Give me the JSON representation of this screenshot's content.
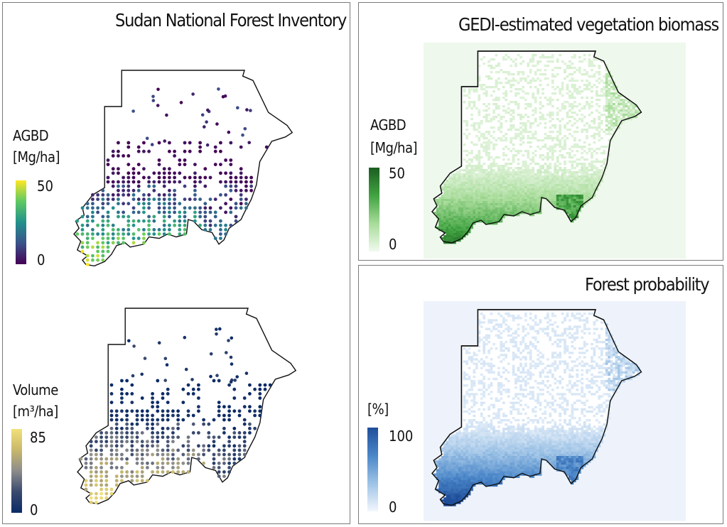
{
  "panels": {
    "inventory": {
      "title": "Sudan National Forest Inventory",
      "agbd": {
        "label_line1": "AGBD",
        "label_line2": "[Mg/ha]",
        "max": "50",
        "min": "0",
        "colors": [
          "#440154",
          "#3b528b",
          "#21918c",
          "#5ec962",
          "#fde725"
        ]
      },
      "volume": {
        "label_line1": "Volume",
        "label_line2": "[m³/ha]",
        "max": "85",
        "min": "0",
        "colors": [
          "#0a2a66",
          "#3a4a6e",
          "#8c8c8c",
          "#c8b86a",
          "#f2e07a"
        ]
      }
    },
    "gedi": {
      "title": "GEDI-estimated vegetation biomass",
      "label_line1": "AGBD",
      "label_line2": "[Mg/ha]",
      "max": "50",
      "min": "0",
      "colors": [
        "#f1faee",
        "#a8dc9a",
        "#41a341",
        "#1b5e20"
      ]
    },
    "forest": {
      "title": "Forest probability",
      "label_line1": "[%]",
      "max": "100",
      "min": "0",
      "colors": [
        "#f3f7fd",
        "#9ec3e6",
        "#4a86c8",
        "#1f4e9a"
      ]
    }
  }
}
